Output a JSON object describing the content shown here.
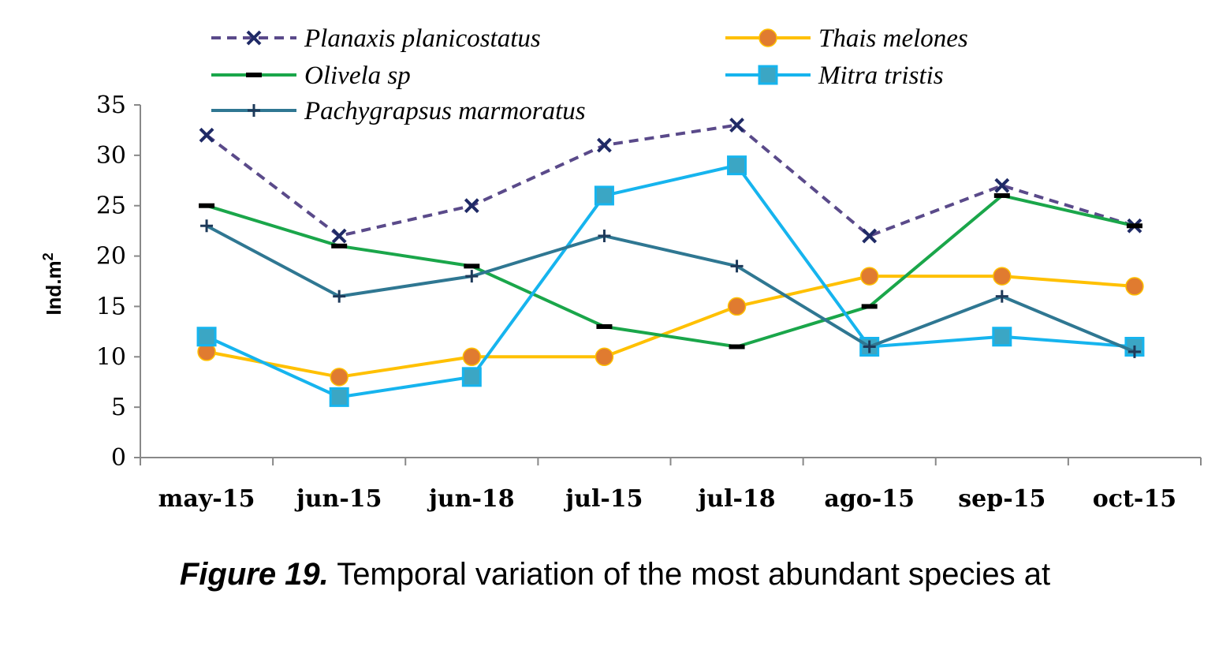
{
  "chart_data": {
    "type": "line",
    "categories": [
      "may-15",
      "jun-15",
      "jun-18",
      "jul-15",
      "jul-18",
      "ago-15",
      "sep-15",
      "oct-15"
    ],
    "ylabel": "Ind.m",
    "ylabel_sup": "2",
    "ylim": [
      0,
      35
    ],
    "yticks": [
      0,
      5,
      10,
      15,
      20,
      25,
      30,
      35
    ],
    "grid": false,
    "legend_position": "top",
    "series": [
      {
        "name": "Planaxis planicostatus",
        "color": "#5a4a8a",
        "dash": true,
        "marker": "x",
        "marker_color": "#1f2a66",
        "values": [
          32,
          22,
          25,
          31,
          33,
          22,
          27,
          23
        ]
      },
      {
        "name": "Thais melones",
        "color": "#ffc000",
        "dash": false,
        "marker": "circle",
        "marker_color": "#e07b30",
        "values": [
          10.5,
          8,
          10,
          10,
          15,
          18,
          18,
          17
        ]
      },
      {
        "name": "Olivela sp",
        "color": "#1aa64a",
        "dash": false,
        "marker": "dash",
        "marker_color": "#000000",
        "values": [
          25,
          21,
          19,
          13,
          11,
          15,
          26,
          23
        ]
      },
      {
        "name": "Mitra tristis",
        "color": "#16b4ee",
        "dash": false,
        "marker": "square",
        "marker_color": "#3ba6c4",
        "values": [
          12,
          6,
          8,
          26,
          29,
          11,
          12,
          11
        ]
      },
      {
        "name": "Pachygrapsus marmoratus",
        "color": "#2f7792",
        "dash": false,
        "marker": "plus",
        "marker_color": "#1e3a5a",
        "values": [
          23,
          16,
          18,
          22,
          19,
          11,
          16,
          10.5
        ]
      }
    ]
  },
  "caption": {
    "figure_label": "Figure 19.",
    "text": " Temporal variation of the most abundant species at"
  }
}
